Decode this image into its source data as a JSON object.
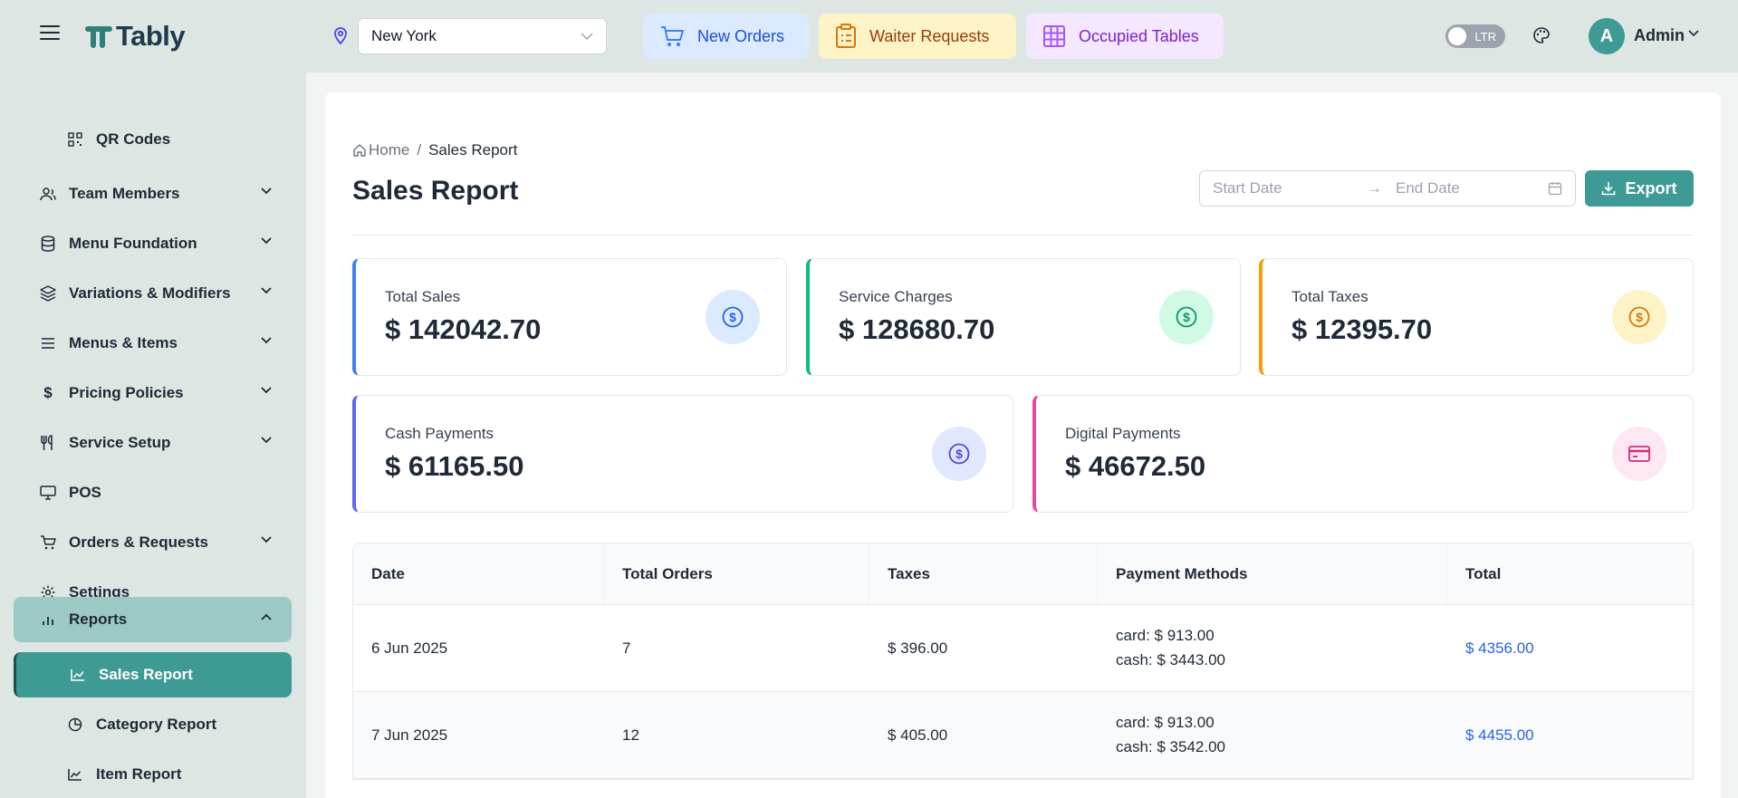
{
  "app": {
    "name": "Tably"
  },
  "header": {
    "location": "New York",
    "quick_actions": {
      "new_orders": "New Orders",
      "waiter_requests": "Waiter Requests",
      "occupied_tables": "Occupied Tables"
    },
    "direction_toggle": "LTR",
    "user": {
      "initial": "A",
      "name": "Admin"
    }
  },
  "sidebar": {
    "items": [
      {
        "label": "QR Codes",
        "icon": "qr-code-icon"
      },
      {
        "label": "Team Members",
        "icon": "users-icon"
      },
      {
        "label": "Menu Foundation",
        "icon": "database-icon"
      },
      {
        "label": "Variations & Modifiers",
        "icon": "layers-icon"
      },
      {
        "label": "Menus & Items",
        "icon": "list-icon"
      },
      {
        "label": "Pricing Policies",
        "icon": "dollar-icon"
      },
      {
        "label": "Service Setup",
        "icon": "utensils-icon"
      },
      {
        "label": "POS",
        "icon": "monitor-icon"
      },
      {
        "label": "Orders & Requests",
        "icon": "cart-icon"
      },
      {
        "label": "Settings",
        "icon": "gear-icon"
      },
      {
        "label": "Reports",
        "icon": "bar-chart-icon"
      },
      {
        "label": "Sales Report",
        "icon": "line-chart-icon"
      },
      {
        "label": "Category Report",
        "icon": "pie-chart-icon"
      },
      {
        "label": "Item Report",
        "icon": "area-chart-icon"
      }
    ]
  },
  "breadcrumb": {
    "home": "Home",
    "separator": "/",
    "current": "Sales Report"
  },
  "page": {
    "title": "Sales Report"
  },
  "filters": {
    "start_placeholder": "Start Date",
    "end_placeholder": "End Date",
    "arrow": "→",
    "export_label": "Export"
  },
  "stats": {
    "total_sales": {
      "label": "Total Sales",
      "value": "$ 142042.70",
      "color": "#3b82f6"
    },
    "service_charges": {
      "label": "Service Charges",
      "value": "$ 128680.70",
      "color": "#10b981"
    },
    "total_taxes": {
      "label": "Total Taxes",
      "value": "$ 12395.70",
      "color": "#f59e0b"
    },
    "cash_payments": {
      "label": "Cash Payments",
      "value": "$ 61165.50",
      "color": "#6366f1"
    },
    "digital_payments": {
      "label": "Digital Payments",
      "value": "$ 46672.50",
      "color": "#ec4899"
    }
  },
  "table": {
    "headers": [
      "Date",
      "Total Orders",
      "Taxes",
      "Payment Methods",
      "Total"
    ],
    "rows": [
      {
        "date": "6 Jun 2025",
        "orders": "7",
        "taxes": "$ 396.00",
        "card": "card: $ 913.00",
        "cash": "cash: $ 3443.00",
        "total": "$ 4356.00"
      },
      {
        "date": "7 Jun 2025",
        "orders": "12",
        "taxes": "$ 405.00",
        "card": "card: $ 913.00",
        "cash": "cash: $ 3542.00",
        "total": "$ 4455.00"
      }
    ]
  }
}
